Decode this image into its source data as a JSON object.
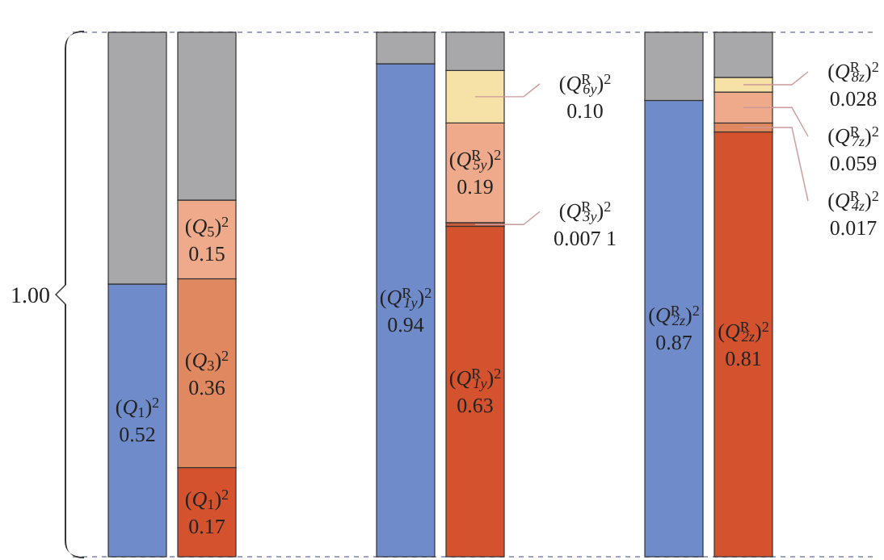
{
  "chart_data": {
    "type": "bar",
    "stacked": true,
    "categories": [
      null,
      null,
      null,
      null,
      null,
      null
    ],
    "ylim": [
      0,
      1
    ],
    "series": [
      {
        "colors": [
          "#6f8bca",
          "#d4532e",
          "#6f8bca",
          "#d4532e",
          "#6f8bca",
          "#d4532e"
        ],
        "values": [
          0.52,
          0.17,
          0.94,
          0.63,
          0.87,
          0.81
        ],
        "value_labels": [
          "(Q$_{1}$)$^{2}$\n0.52",
          "(Q$_{1}$)$^{2}$\n0.17",
          "(Q$^{R}$$_{1y}$)$^{2}$\n0.94",
          "(Q$^{R}$$_{1y}$)$^{2}$\n0.63",
          "(Q$^{R}$$_{2z}$)$^{2}$\n0.87",
          "(Q$^{R}$$_{2z}$)$^{2}$\n0.81"
        ]
      },
      {
        "colors": [
          "#e0885f",
          "#e0885f",
          "#e0885f",
          "#c95a3a",
          "#e0885f",
          "#e0885f"
        ],
        "values": [
          null,
          0.36,
          null,
          0.0071,
          null,
          0.017
        ],
        "value_labels": [
          null,
          "(Q$_{3}$)$^{2}$\n0.36",
          null,
          "(Q$^{R}$$_{3y}$)$^{2}$\n0.007 1",
          null,
          "(Q$^{R}$$_{4z}$)$^{2}$\n0.017"
        ]
      },
      {
        "colors": [
          "#eeaa8a",
          "#eeaa8a",
          "#eeaa8a",
          "#eeaa8a",
          "#eeaa8a",
          "#eeaa8a"
        ],
        "values": [
          null,
          0.15,
          null,
          0.19,
          null,
          0.059
        ],
        "value_labels": [
          null,
          "(Q$_{5}$)$^{2}$\n0.15",
          null,
          "(Q$^{R}$$_{5y}$)$^{2}$\n0.19",
          null,
          "(Q$^{R}$$_{7z}$)$^{2}$\n0.059"
        ]
      },
      {
        "colors": [
          "#f6e2a6",
          "#f6e2a6",
          "#f6e2a6",
          "#f6e2a6",
          "#f6e2a6",
          "#f6e2a6"
        ],
        "values": [
          null,
          null,
          null,
          0.1,
          null,
          0.028
        ],
        "value_labels": [
          null,
          null,
          null,
          "(Q$^{R}$$_{6y}$)$^{2}$\n0.10",
          null,
          "(Q$^{R}$$_{8z}$)$^{2}$\n0.028"
        ]
      },
      {
        "colors": [
          "#a8a7a9",
          "#a8a7a9",
          "#a8a7a9",
          "#a8a7a9",
          "#a8a7a9",
          "#a8a7a9"
        ],
        "values": [
          0.48,
          0.32,
          0.06,
          0.073,
          0.13,
          0.086
        ]
      }
    ],
    "ref_lines": [
      {
        "axis": "y",
        "value": 0,
        "line_style": "dashed",
        "color": "#9aa3c4"
      },
      {
        "axis": "y",
        "value": 1,
        "line_style": "dashed",
        "color": "#9aa3c4"
      }
    ],
    "annotations": [
      "1.00"
    ]
  }
}
